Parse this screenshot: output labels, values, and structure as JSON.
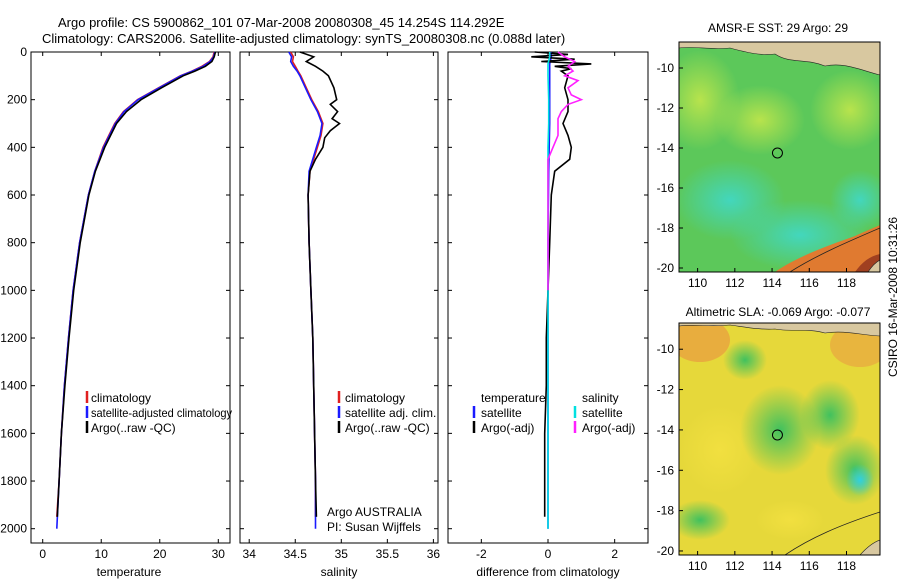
{
  "header": {
    "line1": "Argo profile: CS 5900862_101 07-Mar-2008 20080308_45 14.254S 114.292E",
    "line2": "Climatology: CARS2006. Satellite-adjusted climatology: synTS_20080308.nc (0.088d later)"
  },
  "side_stamp": "CSIRO 16-Mar-2008 10:31:26",
  "chart_data": [
    {
      "id": "temperature",
      "type": "line",
      "xlabel": "temperature",
      "ylabel": "",
      "xlim": [
        -2,
        32
      ],
      "ylim": [
        2060,
        0
      ],
      "xticks": [
        0,
        10,
        20,
        30
      ],
      "yticks": [
        0,
        200,
        400,
        600,
        800,
        1000,
        1200,
        1400,
        1600,
        1800,
        2000
      ],
      "legend": [
        "climatology",
        "satellite-adjusted climatology",
        "Argo(..raw -QC)"
      ],
      "series": [
        {
          "name": "climatology",
          "color": "#e02020",
          "pressure": [
            0,
            20,
            40,
            60,
            80,
            100,
            150,
            200,
            250,
            300,
            400,
            500,
            600,
            800,
            1000,
            1200,
            1400,
            1600,
            1800,
            1950
          ],
          "values": [
            29.3,
            29.1,
            28.5,
            27.2,
            25.5,
            23.5,
            19.8,
            16.2,
            13.8,
            12.3,
            10.3,
            8.9,
            7.8,
            6.3,
            5.2,
            4.4,
            3.7,
            3.2,
            2.8,
            2.4
          ]
        },
        {
          "name": "satellite-adjusted climatology",
          "color": "#1a1aff",
          "pressure": [
            0,
            20,
            40,
            60,
            80,
            100,
            150,
            200,
            250,
            300,
            400,
            500,
            600,
            800,
            1000,
            1200,
            1400,
            1600,
            1800,
            2000
          ],
          "values": [
            29.4,
            29.2,
            28.6,
            27.4,
            25.6,
            23.6,
            19.9,
            16.3,
            13.9,
            12.4,
            10.4,
            8.9,
            7.8,
            6.3,
            5.2,
            4.4,
            3.7,
            3.2,
            2.8,
            2.4
          ]
        },
        {
          "name": "Argo(..raw -QC)",
          "color": "#000000",
          "pressure": [
            0,
            20,
            40,
            60,
            80,
            100,
            150,
            200,
            250,
            300,
            400,
            500,
            600,
            800,
            1000,
            1200,
            1400,
            1600,
            1800,
            1950
          ],
          "values": [
            29.5,
            29.3,
            28.9,
            27.8,
            26.0,
            24.0,
            20.3,
            16.8,
            14.3,
            12.6,
            10.6,
            9.0,
            7.9,
            6.4,
            5.3,
            4.5,
            3.8,
            3.2,
            2.8,
            2.5
          ]
        }
      ]
    },
    {
      "id": "salinity",
      "type": "line",
      "xlabel": "salinity",
      "xlim": [
        33.9,
        36.05
      ],
      "ylim": [
        2060,
        0
      ],
      "xticks": [
        34,
        34.5,
        35,
        35.5,
        36
      ],
      "legend": [
        "climatology",
        "satellite adj. clim.",
        "Argo(..raw -QC)"
      ],
      "annotations": [
        "Argo AUSTRALIA",
        "PI: Susan Wijffels"
      ],
      "series": [
        {
          "name": "climatology",
          "color": "#e02020",
          "pressure": [
            0,
            20,
            40,
            60,
            80,
            100,
            150,
            200,
            250,
            300,
            350,
            400,
            500,
            600,
            800,
            1000,
            1200,
            1400,
            1600,
            1800,
            1950
          ],
          "values": [
            34.45,
            34.48,
            34.47,
            34.5,
            34.53,
            34.56,
            34.62,
            34.68,
            34.75,
            34.8,
            34.78,
            34.74,
            34.66,
            34.64,
            34.65,
            34.67,
            34.69,
            34.7,
            34.71,
            34.72,
            34.72
          ]
        },
        {
          "name": "satellite adj. clim.",
          "color": "#1a1aff",
          "pressure": [
            0,
            20,
            40,
            60,
            80,
            100,
            150,
            200,
            250,
            300,
            350,
            400,
            500,
            600,
            800,
            1000,
            1200,
            1400,
            1600,
            1800,
            2000
          ],
          "values": [
            34.43,
            34.46,
            34.45,
            34.48,
            34.52,
            34.55,
            34.61,
            34.67,
            34.74,
            34.79,
            34.77,
            34.73,
            34.65,
            34.64,
            34.65,
            34.67,
            34.69,
            34.7,
            34.71,
            34.72,
            34.72
          ]
        },
        {
          "name": "Argo(..raw -QC)",
          "color": "#000000",
          "pressure": [
            0,
            20,
            40,
            60,
            80,
            100,
            150,
            200,
            220,
            250,
            280,
            300,
            330,
            360,
            400,
            450,
            500,
            600,
            800,
            1000,
            1200,
            1400,
            1600,
            1800,
            1950
          ],
          "values": [
            34.55,
            34.7,
            34.62,
            34.72,
            34.8,
            34.86,
            34.92,
            34.95,
            34.88,
            34.96,
            34.9,
            34.98,
            34.88,
            34.82,
            34.8,
            34.72,
            34.66,
            34.64,
            34.65,
            34.67,
            34.69,
            34.7,
            34.71,
            34.72,
            34.73
          ]
        }
      ]
    },
    {
      "id": "difference",
      "type": "line",
      "xlabel": "difference from climatology",
      "xlim": [
        -3,
        3
      ],
      "ylim": [
        2060,
        0
      ],
      "xticks": [
        -2,
        0,
        2
      ],
      "legend_left_title": "temperature",
      "legend_left": [
        "satellite",
        "Argo(-adj)"
      ],
      "legend_right_title": "salinity",
      "legend_right": [
        "satellite",
        "Argo(-adj)"
      ],
      "series": [
        {
          "name": "temperature satellite",
          "color": "#1a1aff",
          "pressure": [
            0,
            20,
            50,
            100,
            200,
            300,
            500,
            800,
            1200,
            1600,
            2000
          ],
          "values": [
            0.1,
            0.1,
            0.05,
            0.05,
            0.05,
            0.05,
            0.02,
            0.0,
            0.0,
            0.0,
            0.0
          ]
        },
        {
          "name": "temperature Argo(-adj)",
          "color": "#000000",
          "pressure": [
            0,
            10,
            20,
            30,
            40,
            50,
            60,
            70,
            80,
            100,
            150,
            200,
            250,
            300,
            350,
            400,
            450,
            500,
            600,
            800,
            1000,
            1200,
            1400,
            1600,
            1800,
            1950
          ],
          "values": [
            -0.4,
            0.6,
            -0.5,
            0.8,
            -0.2,
            1.3,
            0.2,
            0.7,
            0.4,
            0.6,
            0.5,
            0.6,
            0.6,
            0.45,
            0.6,
            0.7,
            0.65,
            0.2,
            0.1,
            0.05,
            0.0,
            -0.05,
            -0.05,
            -0.1,
            -0.1,
            -0.1
          ]
        },
        {
          "name": "salinity satellite",
          "color": "#00e0e0",
          "pressure": [
            0,
            20,
            50,
            100,
            200,
            300,
            400,
            500,
            800,
            1200,
            1600,
            2000
          ],
          "values": [
            0.05,
            0.05,
            0.0,
            0.0,
            0.02,
            0.02,
            0.0,
            0.0,
            0.0,
            0.0,
            0.0,
            0.0
          ]
        },
        {
          "name": "salinity Argo(-adj)",
          "color": "#ff20ff",
          "pressure": [
            0,
            20,
            40,
            60,
            80,
            100,
            120,
            150,
            180,
            200,
            220,
            250,
            280,
            300,
            350,
            400,
            450,
            500,
            600,
            800,
            1000
          ],
          "values": [
            0.3,
            0.5,
            0.8,
            0.6,
            0.75,
            0.5,
            0.9,
            0.6,
            0.7,
            1.0,
            0.6,
            0.4,
            0.3,
            0.3,
            0.3,
            0.15,
            0.0,
            0.0,
            0.0,
            0.0,
            0.0
          ]
        }
      ]
    },
    {
      "id": "sst_map",
      "type": "heatmap",
      "title": "AMSR-E SST: 29 Argo: 29",
      "xlim": [
        109.0,
        119.8
      ],
      "ylim": [
        -20.2,
        -8.7
      ],
      "xticks": [
        110,
        112,
        114,
        116,
        118
      ],
      "yticks": [
        -10,
        -12,
        -14,
        -16,
        -18,
        -20
      ],
      "marker": {
        "lon": 114.29,
        "lat": -14.25
      }
    },
    {
      "id": "sla_map",
      "type": "heatmap",
      "title": "Altimetric SLA: -0.069 Argo: -0.077",
      "xlim": [
        109.0,
        119.8
      ],
      "ylim": [
        -20.2,
        -8.7
      ],
      "xticks": [
        110,
        112,
        114,
        116,
        118
      ],
      "yticks": [
        -10,
        -12,
        -14,
        -16,
        -18,
        -20
      ],
      "marker": {
        "lon": 114.29,
        "lat": -14.25
      }
    }
  ]
}
